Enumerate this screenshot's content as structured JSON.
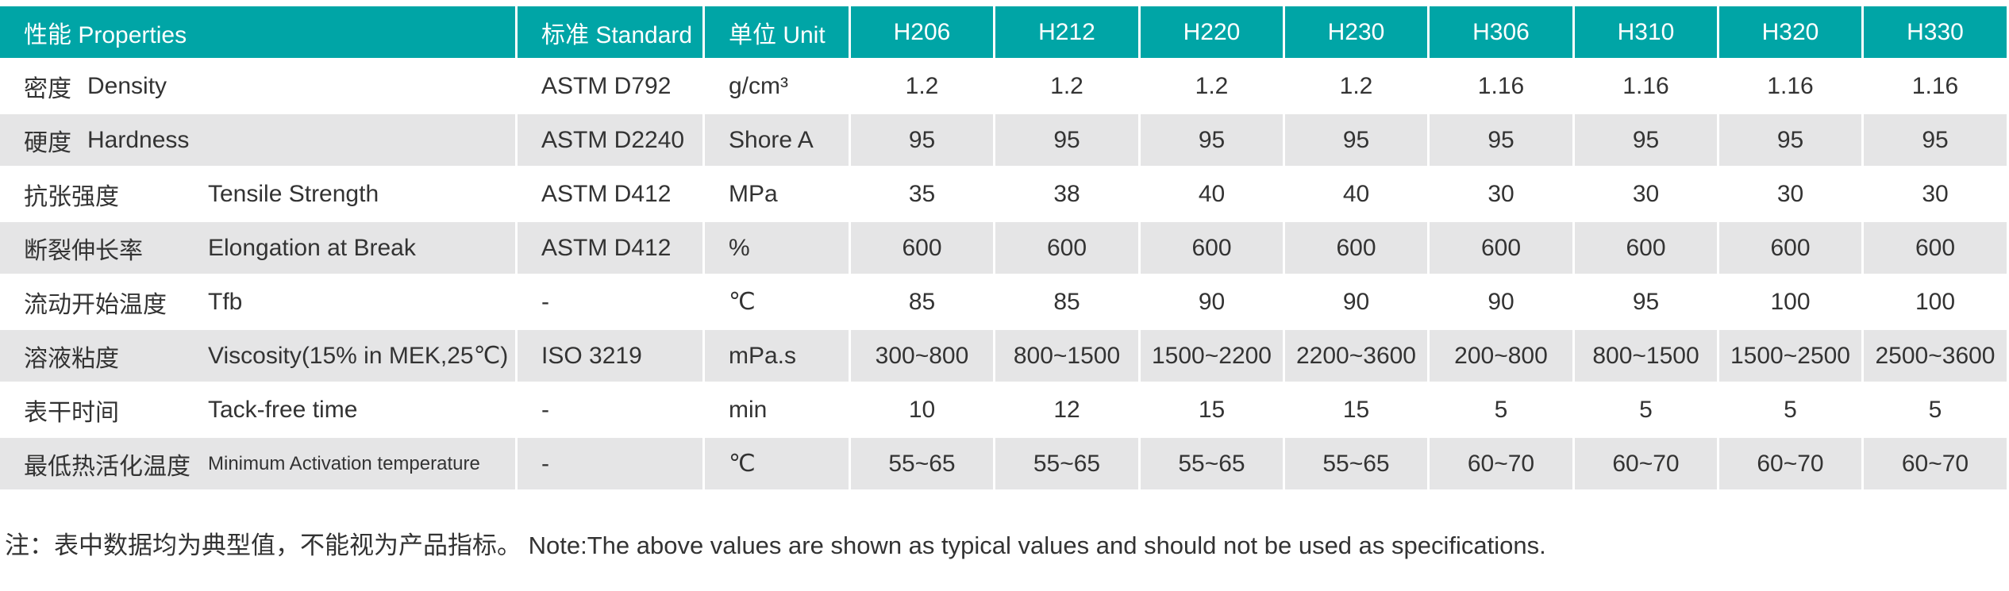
{
  "table": {
    "header": [
      "性能 Properties",
      "标准 Standard",
      "单位 Unit",
      "H206",
      "H212",
      "H220",
      "H230",
      "H306",
      "H310",
      "H320",
      "H330"
    ],
    "rows": [
      {
        "property_zh": "密度",
        "property_en": "Density",
        "standard": "ASTM D792",
        "unit": "g/cm³",
        "values": [
          "1.2",
          "1.2",
          "1.2",
          "1.2",
          "1.16",
          "1.16",
          "1.16",
          "1.16"
        ]
      },
      {
        "property_zh": "硬度",
        "property_en": "Hardness",
        "standard": "ASTM D2240",
        "unit": "Shore A",
        "values": [
          "95",
          "95",
          "95",
          "95",
          "95",
          "95",
          "95",
          "95"
        ]
      },
      {
        "property_zh": "抗张强度",
        "property_en": "Tensile Strength",
        "standard": "ASTM D412",
        "unit": "MPa",
        "values": [
          "35",
          "38",
          "40",
          "40",
          "30",
          "30",
          "30",
          "30"
        ]
      },
      {
        "property_zh": "断裂伸长率",
        "property_en": "Elongation at Break",
        "standard": "ASTM D412",
        "unit": "%",
        "values": [
          "600",
          "600",
          "600",
          "600",
          "600",
          "600",
          "600",
          "600"
        ]
      },
      {
        "property_zh": "流动开始温度",
        "property_en": "Tfb",
        "standard": "-",
        "unit": "℃",
        "values": [
          "85",
          "85",
          "90",
          "90",
          "90",
          "95",
          "100",
          "100"
        ]
      },
      {
        "property_zh": "溶液粘度",
        "property_en": "Viscosity(15% in MEK,25℃)",
        "standard": "ISO 3219",
        "unit": "mPa.s",
        "values": [
          "300~800",
          "800~1500",
          "1500~2200",
          "2200~3600",
          "200~800",
          "800~1500",
          "1500~2500",
          "2500~3600"
        ]
      },
      {
        "property_zh": "表干时间",
        "property_en": "Tack-free time",
        "standard": "-",
        "unit": "min",
        "values": [
          "10",
          "12",
          "15",
          "15",
          "5",
          "5",
          "5",
          "5"
        ]
      },
      {
        "property_zh": "最低热活化温度",
        "property_en": "Minimum Activation temperature",
        "standard": "-",
        "unit": "℃",
        "values": [
          "55~65",
          "55~65",
          "55~65",
          "55~65",
          "60~70",
          "60~70",
          "60~70",
          "60~70"
        ]
      }
    ]
  },
  "note": "注：表中数据均为典型值，不能视为产品指标。 Note:The above values are shown as typical values and should not be used as specifications."
}
